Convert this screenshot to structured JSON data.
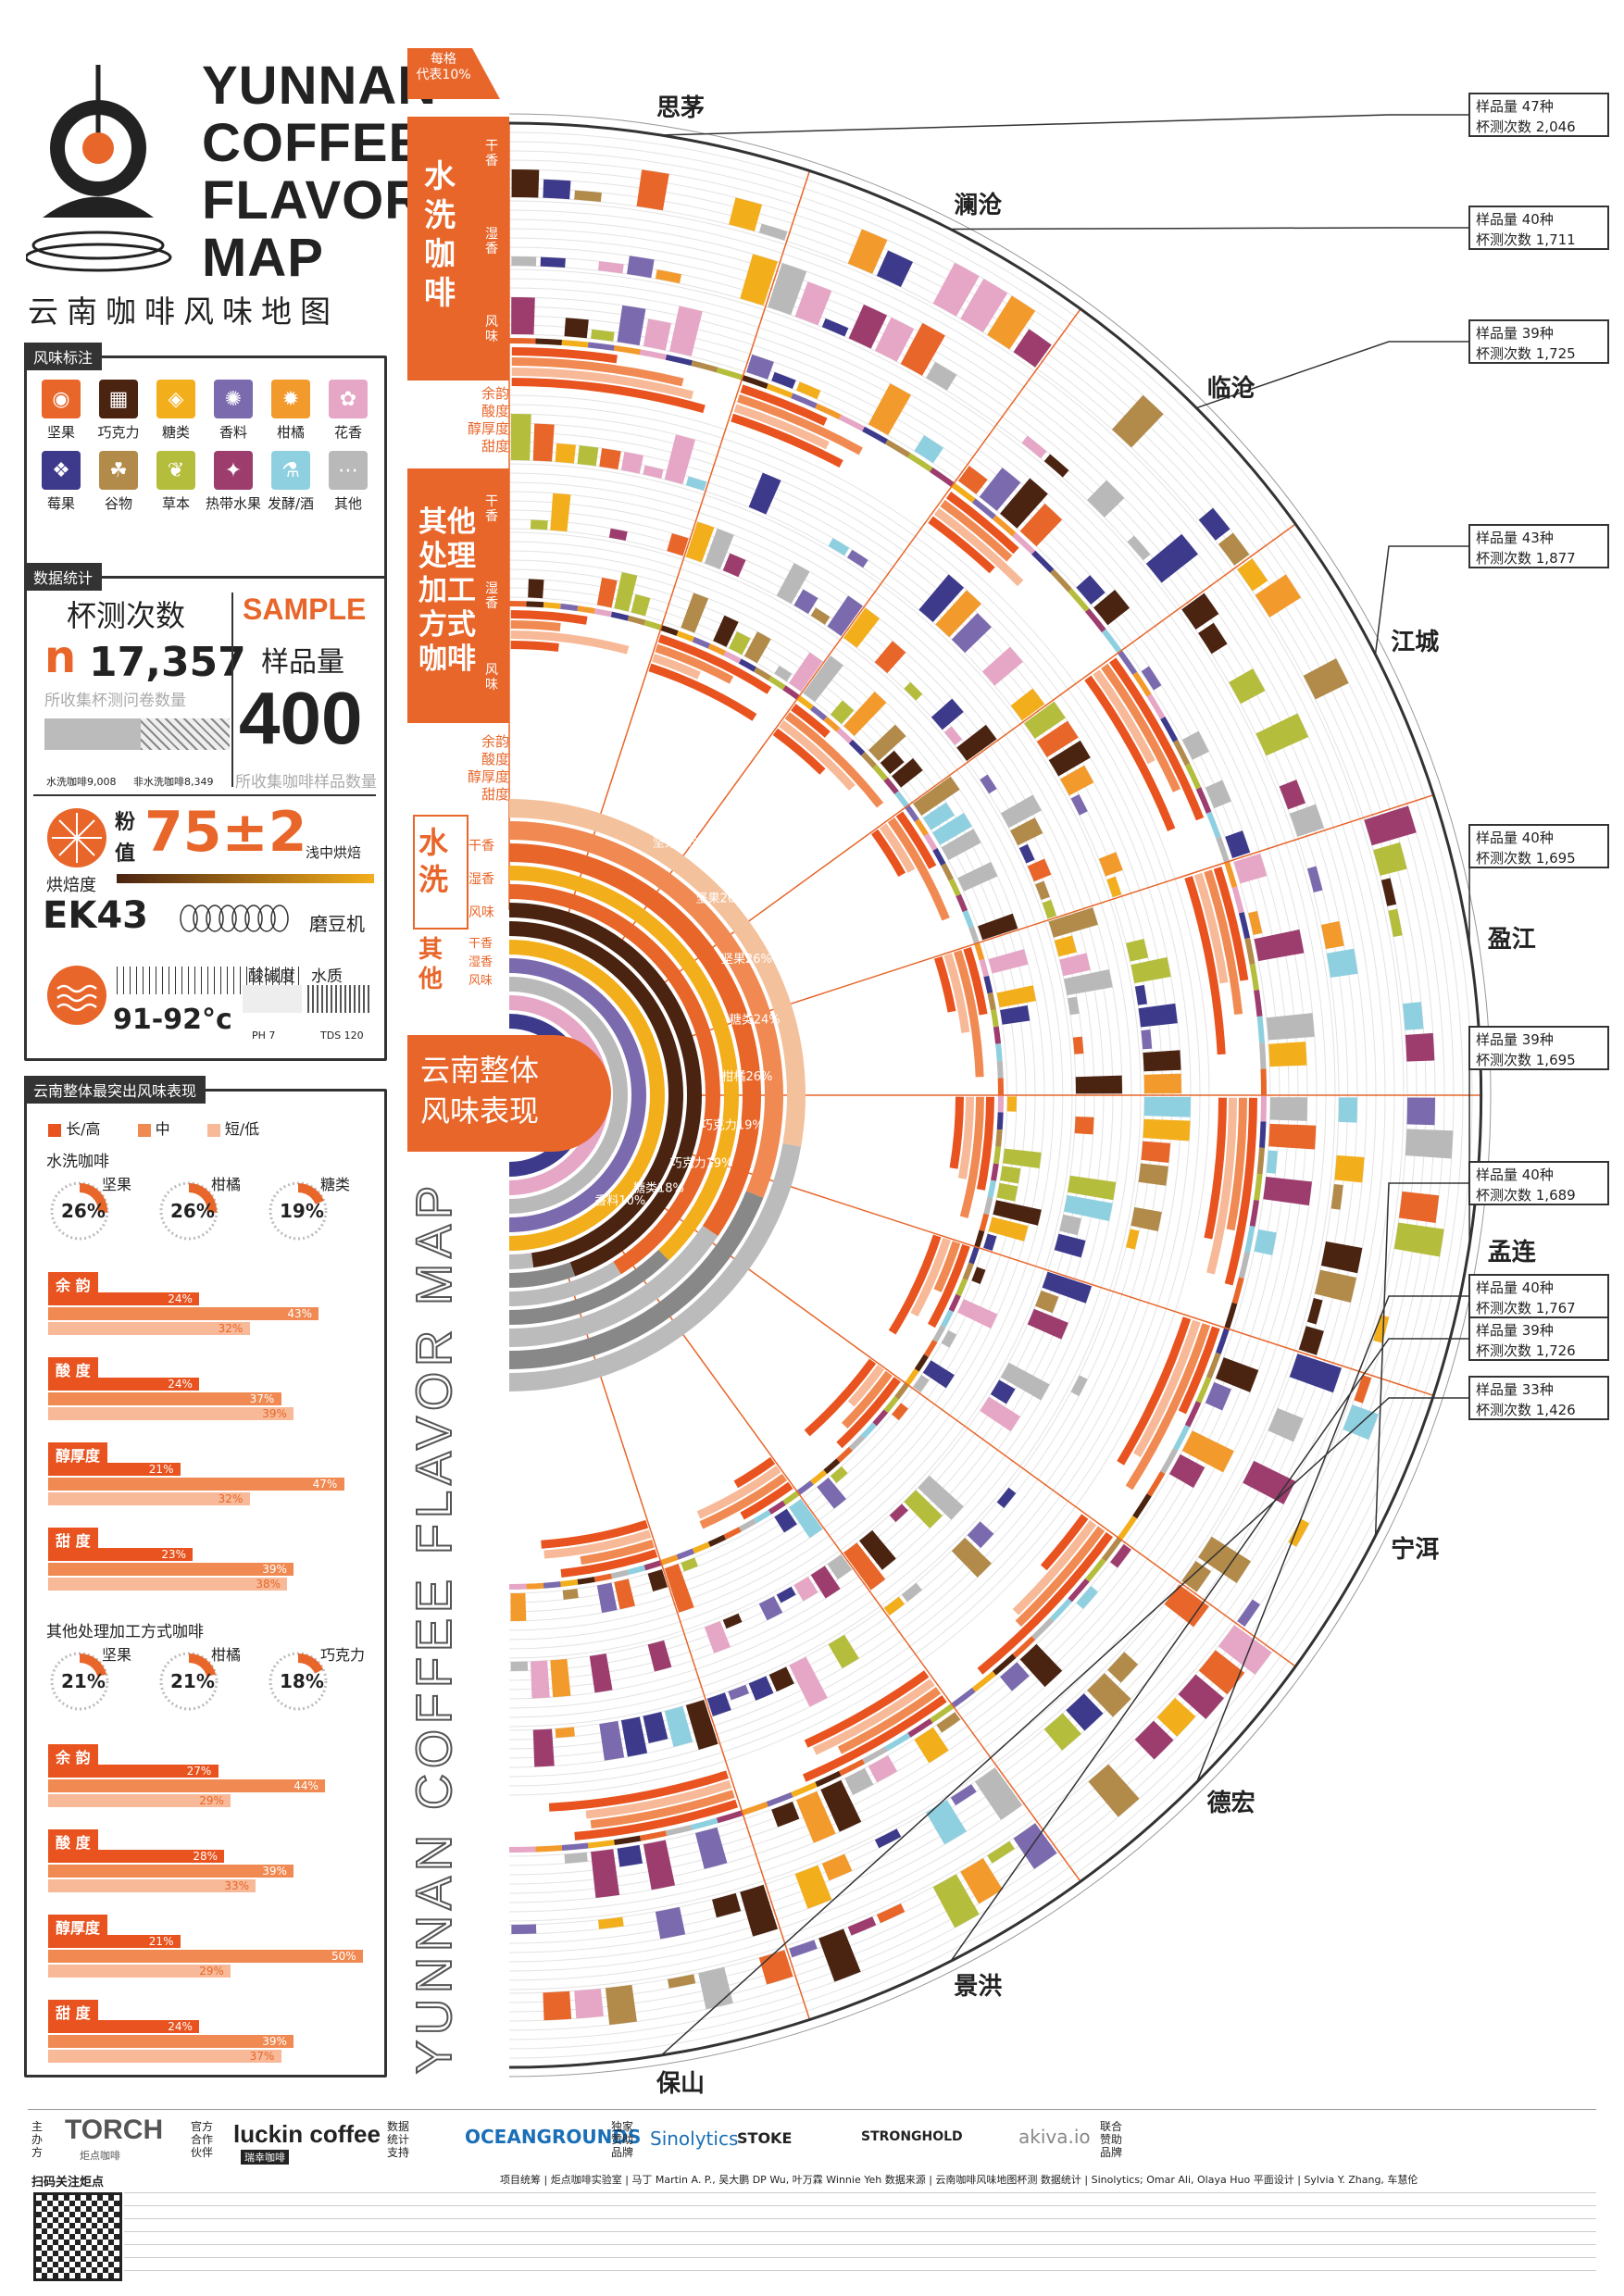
{
  "header": {
    "title_lines": [
      "YUNNAN",
      "COFFEE",
      "FLAVOR",
      "MAP"
    ],
    "subtitle": "云南咖啡风味地图"
  },
  "legend": {
    "tag": "风味标注",
    "items": [
      {
        "label": "坚果",
        "color": "#e8662a",
        "icon": "nut-icon"
      },
      {
        "label": "巧克力",
        "color": "#4a2311",
        "icon": "chocolate-icon"
      },
      {
        "label": "糖类",
        "color": "#f3ae1b",
        "icon": "sugar-icon"
      },
      {
        "label": "香料",
        "color": "#7b6aae",
        "icon": "spice-icon"
      },
      {
        "label": "柑橘",
        "color": "#f39a2c",
        "icon": "citrus-icon"
      },
      {
        "label": "花香",
        "color": "#e6a6c6",
        "icon": "flower-icon"
      },
      {
        "label": "莓果",
        "color": "#3d3a8c",
        "icon": "berry-icon"
      },
      {
        "label": "谷物",
        "color": "#b28a4a",
        "icon": "grain-icon"
      },
      {
        "label": "草本",
        "color": "#b5bd3c",
        "icon": "herb-icon"
      },
      {
        "label": "热带水果",
        "color": "#9c3d6e",
        "icon": "tropical-fruit-icon"
      },
      {
        "label": "发酵/酒",
        "color": "#8fd0e0",
        "icon": "ferment-icon"
      },
      {
        "label": "其他",
        "color": "#b9b9b9",
        "icon": "other-icon"
      }
    ]
  },
  "stats": {
    "tag": "数据统计",
    "cup_title": "杯测次数",
    "cup_prefix": "n",
    "cup_count": "17,357",
    "cup_sub": "所收集杯测问卷数量",
    "washed_label": "水洗咖啡",
    "washed_count": "9,008",
    "nonwashed_label": "非水洗咖啡",
    "nonwashed_count": "8,349",
    "washed_share": 0.519,
    "sample_en": "SAMPLE",
    "sample_title": "样品量",
    "sample_count": "400",
    "sample_sub": "所收集咖啡样品数量",
    "powder_label_1": "粉",
    "powder_label_2": "值",
    "roast_value": "75±2",
    "roast_label": "烘焙度",
    "roast_note": "浅中烘焙",
    "grinder": "EK43",
    "grinder_label": "磨豆机",
    "water_temp": "91-92°c",
    "ph_title": "酸碱度",
    "ph_value": "PH 7",
    "water_title": "水质",
    "tds_value": "TDS 120"
  },
  "overall": {
    "tag": "云南整体最突出风味表现",
    "key_long": "长/高",
    "key_mid": "中",
    "key_short": "短/低",
    "washed_title": "水洗咖啡",
    "washed_donuts": [
      {
        "pct": 26,
        "label": "坚果",
        "value": 0.26
      },
      {
        "pct": 26,
        "label": "柑橘",
        "value": 0.26
      },
      {
        "pct": 19,
        "label": "糖类",
        "value": 0.19
      }
    ],
    "washed_bars": [
      {
        "title": "余 韵",
        "values": [
          24,
          43,
          32
        ],
        "labels": [
          "24%",
          "43%",
          "32%"
        ]
      },
      {
        "title": "酸 度",
        "values": [
          24,
          37,
          39
        ],
        "labels": [
          "24%",
          "37%",
          "39%"
        ]
      },
      {
        "title": "醇厚度",
        "values": [
          21,
          47,
          32
        ],
        "labels": [
          "21%",
          "47%",
          "32%"
        ]
      },
      {
        "title": "甜 度",
        "values": [
          23,
          39,
          38
        ],
        "labels": [
          "23%",
          "39%",
          "38%"
        ]
      }
    ],
    "other_title": "其他处理加工方式咖啡",
    "other_donuts": [
      {
        "pct": 21,
        "label": "坚果",
        "value": 0.21
      },
      {
        "pct": 21,
        "label": "柑橘",
        "value": 0.21
      },
      {
        "pct": 18,
        "label": "巧克力",
        "value": 0.18
      }
    ],
    "other_bars": [
      {
        "title": "余 韵",
        "values": [
          27,
          44,
          29
        ],
        "labels": [
          "27%",
          "44%",
          "29%"
        ]
      },
      {
        "title": "酸 度",
        "values": [
          28,
          39,
          33
        ],
        "labels": [
          "28%",
          "39%",
          "33%"
        ]
      },
      {
        "title": "醇厚度",
        "values": [
          21,
          50,
          29
        ],
        "labels": [
          "21%",
          "50%",
          "29%"
        ]
      },
      {
        "title": "甜 度",
        "values": [
          24,
          39,
          37
        ],
        "labels": [
          "24%",
          "39%",
          "37%"
        ]
      }
    ]
  },
  "map_labels": {
    "scale_note_1": "每格",
    "scale_note_2": "代表10%",
    "washed_panel": "水洗咖啡",
    "other_panel": "其他处理加工方式咖啡",
    "dry": "干香",
    "wet": "湿香",
    "flavor": "风味",
    "attrs": [
      "余韵",
      "酸度",
      "醇厚度",
      "甜度"
    ],
    "center_washed": "水洗",
    "center_other": "其他",
    "center_title_1": "云南整体",
    "center_title_2": "风味表现",
    "vertical_title": "YUNNAN COFFEE FLAVOR MAP",
    "center_ring_labels": [
      "坚果40%",
      "坚果26%",
      "坚果26%",
      "糖类24%",
      "柑橘26%",
      "巧克力19%",
      "巧克力19%",
      "糖类18%",
      "香料10%"
    ]
  },
  "chart_data": {
    "type": "radial-bar",
    "title": "YUNNAN COFFEE FLAVOR MAP",
    "regions": [
      {
        "name": "思茅",
        "samples": "样品量 47种",
        "cups": "杯测次数 2,046"
      },
      {
        "name": "澜沧",
        "samples": "样品量 40种",
        "cups": "杯测次数 1,711"
      },
      {
        "name": "临沧",
        "samples": "样品量 39种",
        "cups": "杯测次数 1,725"
      },
      {
        "name": "江城",
        "samples": "样品量 43种",
        "cups": "杯测次数 1,877"
      },
      {
        "name": "盈江",
        "samples": "样品量 40种",
        "cups": "杯测次数 1,695"
      },
      {
        "name": "孟连",
        "samples": "样品量 39种",
        "cups": "杯测次数 1,695"
      },
      {
        "name": "宁洱",
        "samples": "样品量 40种",
        "cups": "杯测次数 1,689"
      },
      {
        "name": "德宏",
        "samples": "样品量 40种",
        "cups": "杯测次数 1,767"
      },
      {
        "name": "景洪",
        "samples": "样品量 39种",
        "cups": "杯测次数 1,726"
      },
      {
        "name": "保山",
        "samples": "样品量 33种",
        "cups": "杯测次数 1,426"
      }
    ],
    "center": {
      "washed": [
        {
          "attr": "干香",
          "flavor": "坚果",
          "pct": 40
        },
        {
          "attr": "湿香",
          "flavor": "坚果",
          "pct": 26
        },
        {
          "attr": "风味",
          "flavor": "坚果",
          "pct": 26
        }
      ],
      "other": [
        {
          "attr": "干香",
          "flavor": "巧克力",
          "pct": 19
        },
        {
          "attr": "湿香",
          "flavor": "巧克力",
          "pct": 19
        },
        {
          "attr": "风味",
          "flavor": "糖类",
          "pct": 18
        }
      ]
    }
  },
  "footer": {
    "host_label": "主办方",
    "host": "TORCH",
    "host_sub": "炬点咖啡",
    "partner_label": "官方合作伙伴",
    "partner": "luckin coffee",
    "partner_sub": "瑞幸咖啡",
    "data_label": "数据统计支持",
    "data_sponsor": "OCEANGROUNDS",
    "exclusive_label": "独家赞助品牌",
    "exclusive": "Sinolytics",
    "brands": [
      "STOKE",
      "STRONGHOLD",
      "akiva.io"
    ],
    "joint_label": "联合赞助品牌",
    "scan_label": "扫码关注炬点",
    "credit_line": "项目统筹 | 炬点咖啡实验室 | 马丁 Martin A. P., 吴大鹏 DP Wu, 叶万霖 Winnie Yeh  数据来源 | 云南咖啡风味地图杯测  数据统计 | Sinolytics; Omar Ali, Olaya Huo  平面设计 | Sylvia Y. Zhang, 车慧伦"
  }
}
